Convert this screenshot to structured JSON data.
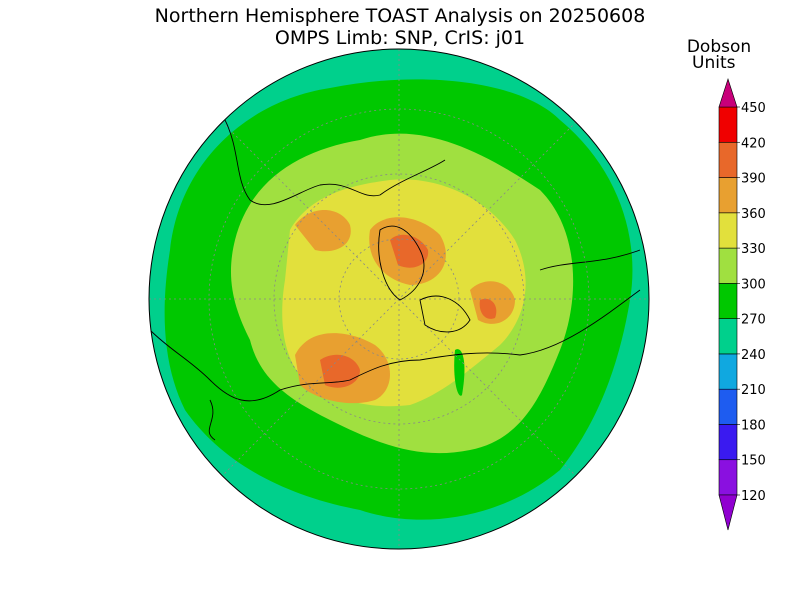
{
  "title": "Northern Hemisphere TOAST Analysis on 20250608",
  "subtitle": "OMPS Limb: SNP, CrIS: j01",
  "colorbar": {
    "label": [
      "Dobson",
      "Units"
    ],
    "levels": [
      120,
      150,
      180,
      210,
      240,
      270,
      300,
      330,
      360,
      390,
      420,
      450
    ],
    "colors": [
      "#8a10e0",
      "#3a1af0",
      "#1e5cf0",
      "#10a8e0",
      "#00d08c",
      "#00c800",
      "#a0e040",
      "#e2e03c",
      "#e8a030",
      "#e8682a",
      "#f00000"
    ],
    "under_color": "#9000d0",
    "over_color": "#c8007a"
  }
}
